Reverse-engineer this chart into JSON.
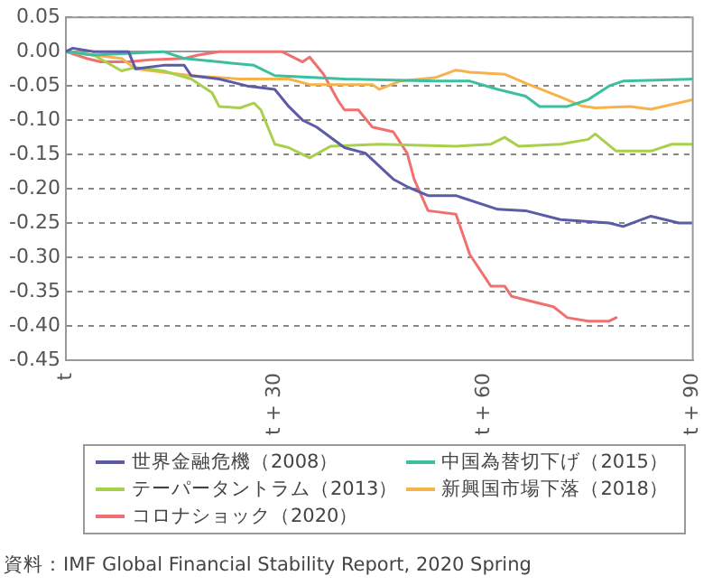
{
  "chart_data": {
    "type": "line",
    "xlim": [
      0,
      90
    ],
    "xticks": [
      {
        "value": 0,
        "label": "t"
      },
      {
        "value": 30,
        "label": "t + 30"
      },
      {
        "value": 60,
        "label": "t + 60"
      },
      {
        "value": 90,
        "label": "t + 90"
      }
    ],
    "ylim": [
      -0.45,
      0.05
    ],
    "yticks": [
      {
        "value": -0.45,
        "label": "-0.45"
      },
      {
        "value": -0.4,
        "label": "-0.40"
      },
      {
        "value": -0.35,
        "label": "-0.35"
      },
      {
        "value": -0.3,
        "label": "-0.30"
      },
      {
        "value": -0.25,
        "label": "-0.25"
      },
      {
        "value": -0.2,
        "label": "-0.20"
      },
      {
        "value": -0.15,
        "label": "-0.15"
      },
      {
        "value": -0.1,
        "label": "-0.10"
      },
      {
        "value": -0.05,
        "label": "-0.05"
      },
      {
        "value": 0,
        "label": "0.00"
      },
      {
        "value": 0.05,
        "label": "0.05"
      }
    ],
    "grid": "y",
    "legend": "bottom",
    "marker": "none",
    "series": [
      {
        "name": "世界金融危機（2008）",
        "color": "#5b5ba8",
        "x": [
          0,
          1,
          4,
          9,
          10,
          14,
          17,
          18,
          22,
          26,
          30,
          32,
          34,
          36,
          40,
          43,
          47,
          49,
          52,
          56,
          62,
          66,
          71,
          78,
          80,
          84,
          88,
          90
        ],
        "values": [
          0,
          0.005,
          0,
          0,
          -0.025,
          -0.02,
          -0.02,
          -0.035,
          -0.04,
          -0.05,
          -0.055,
          -0.08,
          -0.1,
          -0.11,
          -0.14,
          -0.148,
          -0.186,
          -0.197,
          -0.21,
          -0.21,
          -0.23,
          -0.232,
          -0.245,
          -0.25,
          -0.255,
          -0.24,
          -0.25,
          -0.25
        ]
      },
      {
        "name": "中国為替切下げ（2015）",
        "color": "#3bbf9e",
        "x": [
          0,
          4,
          14,
          17,
          22,
          27,
          30,
          40,
          53,
          58,
          62,
          66,
          68,
          72,
          75,
          78,
          80,
          90
        ],
        "values": [
          0,
          -0.005,
          0,
          -0.01,
          -0.015,
          -0.02,
          -0.035,
          -0.04,
          -0.043,
          -0.043,
          -0.055,
          -0.065,
          -0.08,
          -0.08,
          -0.07,
          -0.05,
          -0.043,
          -0.04
        ]
      },
      {
        "name": "テーパータントラム（2013）",
        "color": "#a8d04a",
        "x": [
          0,
          4,
          8,
          10,
          14,
          18,
          21,
          22,
          25,
          27,
          28,
          30,
          32,
          35,
          38,
          45,
          56,
          61,
          63,
          65,
          71,
          75,
          76,
          79,
          84,
          87,
          90
        ],
        "values": [
          0,
          -0.005,
          -0.028,
          -0.023,
          -0.028,
          -0.04,
          -0.06,
          -0.08,
          -0.082,
          -0.075,
          -0.085,
          -0.135,
          -0.14,
          -0.155,
          -0.138,
          -0.135,
          -0.138,
          -0.135,
          -0.125,
          -0.138,
          -0.135,
          -0.128,
          -0.12,
          -0.145,
          -0.145,
          -0.135,
          -0.135
        ]
      },
      {
        "name": "新興国市場下落（2018）",
        "color": "#f7b24a",
        "x": [
          0,
          8,
          10,
          14,
          18,
          25,
          32,
          35,
          44,
          45,
          48,
          53,
          56,
          58,
          63,
          66,
          71,
          74,
          76,
          81,
          84,
          90
        ],
        "values": [
          0,
          -0.01,
          -0.025,
          -0.03,
          -0.035,
          -0.04,
          -0.04,
          -0.048,
          -0.048,
          -0.055,
          -0.043,
          -0.038,
          -0.027,
          -0.03,
          -0.033,
          -0.046,
          -0.066,
          -0.079,
          -0.082,
          -0.08,
          -0.084,
          -0.07
        ]
      },
      {
        "name": "コロナショック（2020）",
        "color": "#f07070",
        "x": [
          0,
          3,
          5,
          9,
          12,
          17,
          19,
          22,
          31,
          34,
          35,
          37,
          39,
          40,
          42,
          44,
          47,
          49,
          50,
          52,
          56,
          58,
          61,
          63,
          64,
          68,
          70,
          72,
          75,
          78,
          79
        ],
        "values": [
          0,
          -0.01,
          -0.015,
          -0.015,
          -0.012,
          -0.01,
          -0.005,
          0,
          0,
          -0.015,
          -0.008,
          -0.033,
          -0.07,
          -0.085,
          -0.085,
          -0.11,
          -0.117,
          -0.148,
          -0.186,
          -0.232,
          -0.237,
          -0.296,
          -0.342,
          -0.342,
          -0.357,
          -0.367,
          -0.372,
          -0.388,
          -0.393,
          -0.393,
          -0.388
        ]
      }
    ],
    "annotations": [
      "資料：IMF Global Financial Stability Report, 2020 Spring"
    ]
  }
}
